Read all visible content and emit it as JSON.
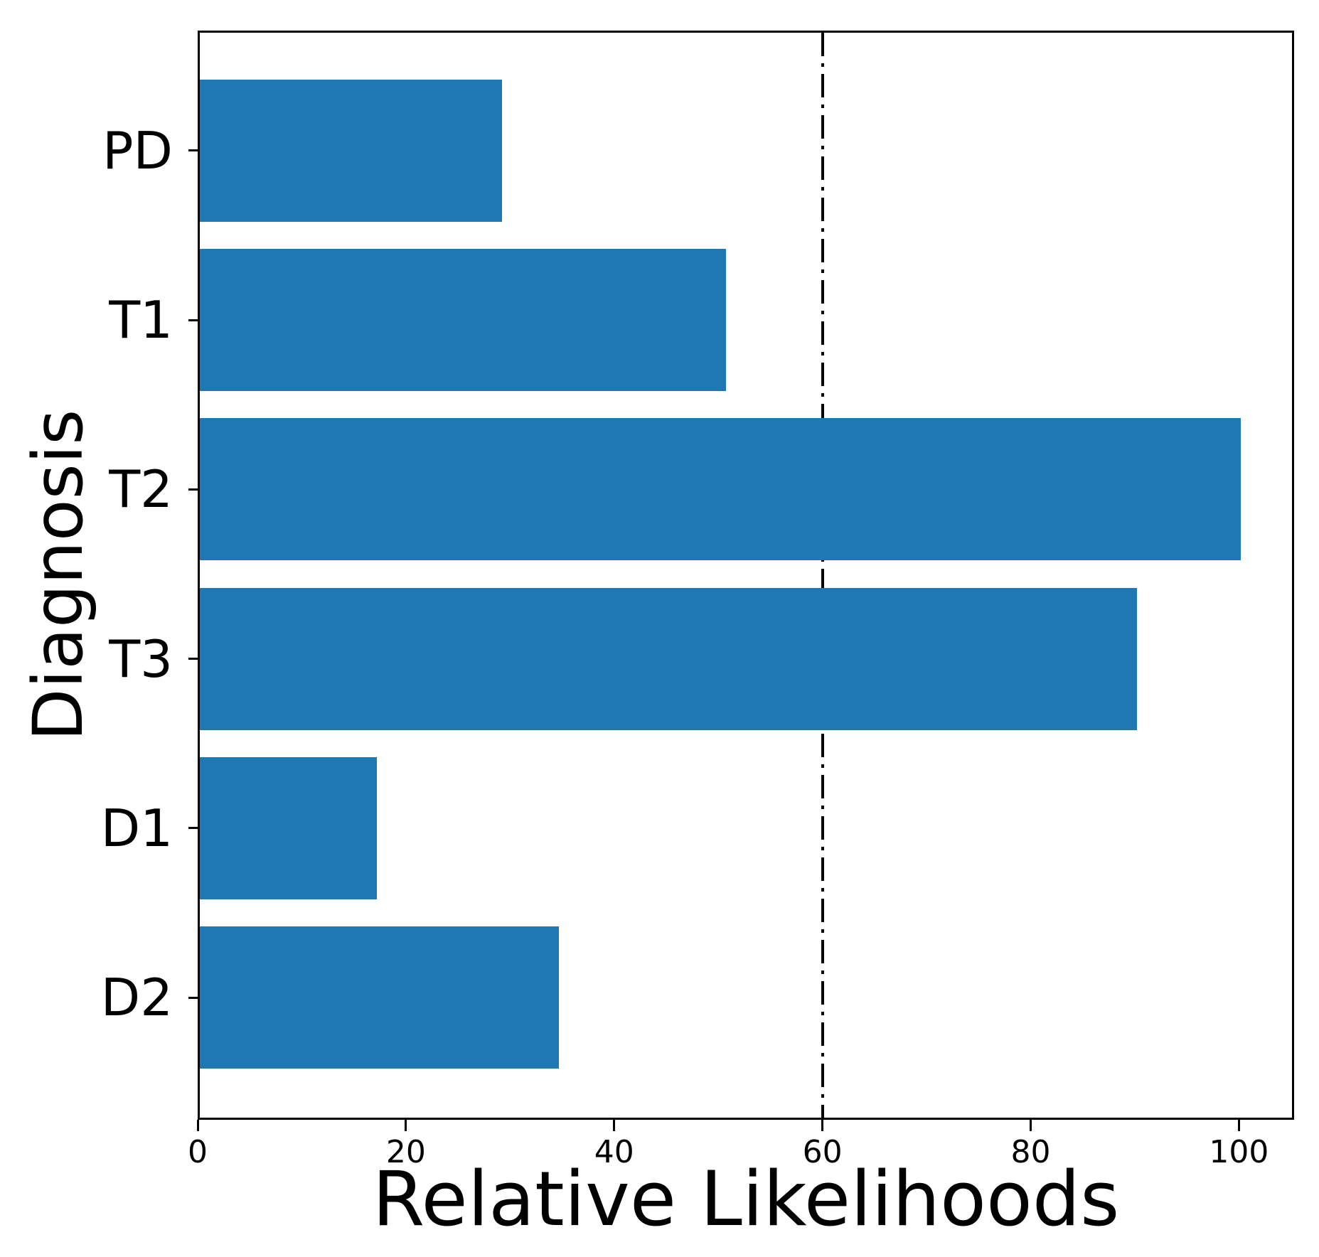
{
  "chart_data": {
    "type": "bar",
    "orientation": "horizontal",
    "xlabel": "Relative Likelihoods",
    "ylabel": "Diagnosis",
    "categories": [
      "PD",
      "T1",
      "T2",
      "T3",
      "D1",
      "D2"
    ],
    "values": [
      29,
      50.5,
      100,
      90,
      17,
      34.5
    ],
    "xticks": [
      0,
      20,
      40,
      60,
      80,
      100
    ],
    "xlim": [
      0,
      105.3
    ],
    "bar_color": "#1f77b4",
    "axis_color": "#000000",
    "reference_line": {
      "x": 60,
      "style": "dash-dot",
      "color": "#000000"
    },
    "grid": false,
    "legend": false
  }
}
